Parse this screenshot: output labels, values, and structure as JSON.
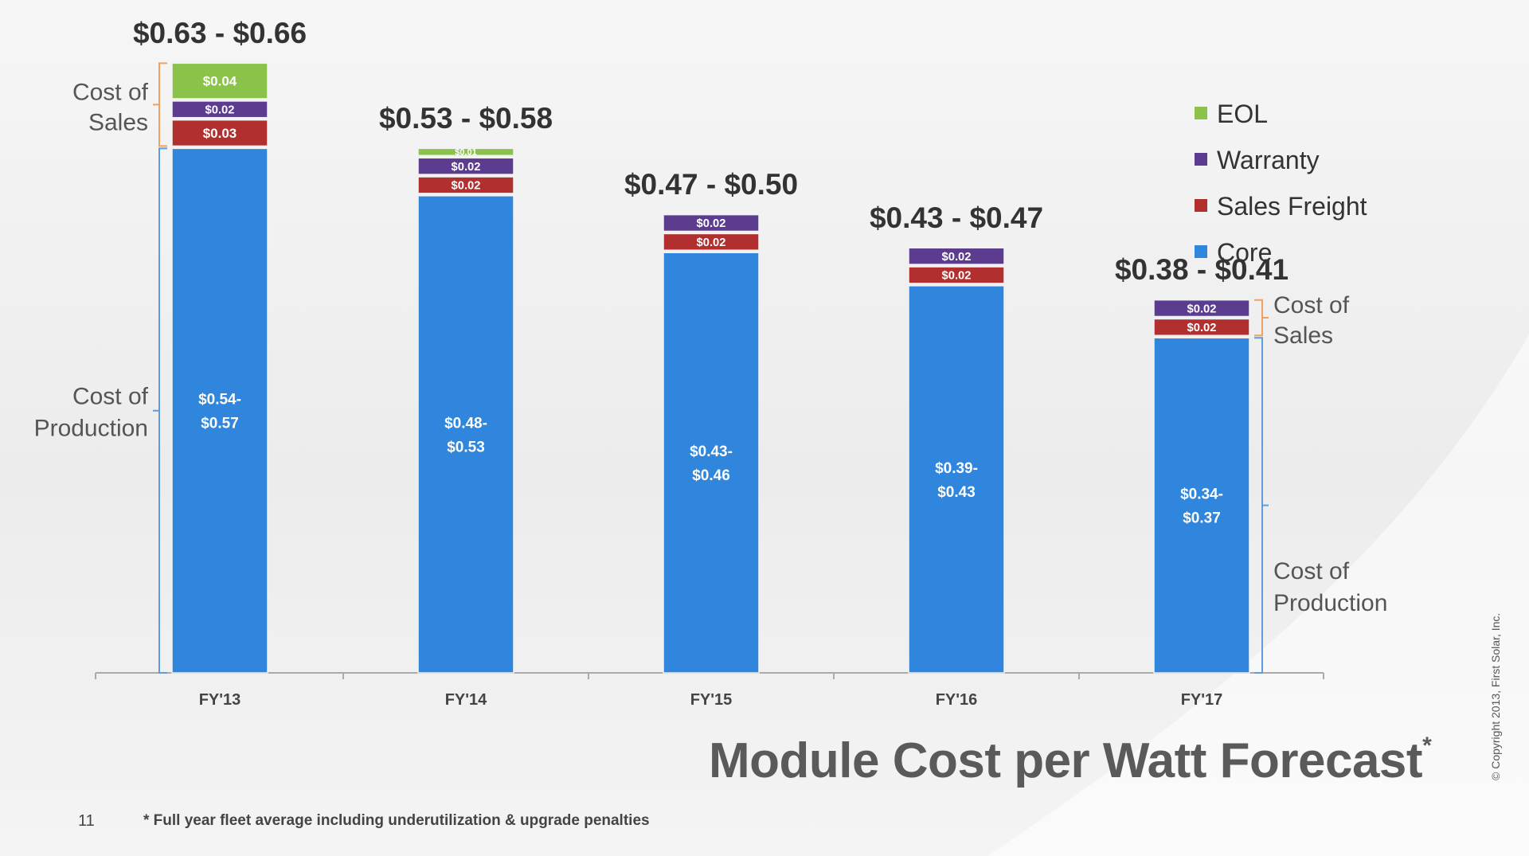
{
  "chart_data": {
    "type": "bar",
    "stacked": true,
    "title": "Module Cost per Watt Forecast",
    "title_marker": "*",
    "categories": [
      "FY'13",
      "FY'14",
      "FY'15",
      "FY'16",
      "FY'17"
    ],
    "totals": [
      "$0.63 - $0.66",
      "$0.53 - $0.58",
      "$0.47 - $0.50",
      "$0.43 - $0.47",
      "$0.38 - $0.41"
    ],
    "series": [
      {
        "name": "Core",
        "color": "#2f86dc",
        "values": [
          0.555,
          0.505,
          0.445,
          0.41,
          0.355
        ],
        "labels": [
          "$0.54- $0.57",
          "$0.48- $0.53",
          "$0.43- $0.46",
          "$0.39- $0.43",
          "$0.34- $0.37"
        ]
      },
      {
        "name": "Sales Freight",
        "color": "#b12f2f",
        "values": [
          0.03,
          0.02,
          0.02,
          0.02,
          0.02
        ],
        "labels": [
          "$0.03",
          "$0.02",
          "$0.02",
          "$0.02",
          "$0.02"
        ]
      },
      {
        "name": "Warranty",
        "color": "#5b3c8f",
        "values": [
          0.02,
          0.02,
          0.02,
          0.02,
          0.02
        ],
        "labels": [
          "$0.02",
          "$0.02",
          "$0.02",
          "$0.02",
          "$0.02"
        ]
      },
      {
        "name": "EOL",
        "color": "#8bc34a",
        "values": [
          0.04,
          0.01,
          0,
          0,
          0
        ],
        "labels": [
          "$0.04",
          "$0.01",
          "",
          "",
          ""
        ]
      }
    ],
    "legend_order": [
      "EOL",
      "Warranty",
      "Sales Freight",
      "Core"
    ],
    "legend_position": "top-right",
    "ylim": [
      0,
      0.66
    ],
    "grid": false,
    "annotations": {
      "cost_of_sales": "Cost of Sales",
      "cost_of_production": "Cost of Production"
    }
  },
  "footer": {
    "page_number": "11",
    "footnote": "* Full year fleet average including underutilization & upgrade penalties",
    "copyright": "© Copyright 2013, First Solar, Inc."
  }
}
